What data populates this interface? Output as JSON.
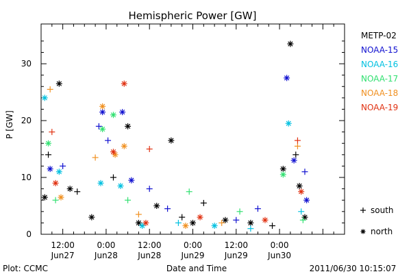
{
  "chart_data": {
    "type": "scatter",
    "title": "Hemispheric Power [GW]",
    "ylabel": "P [GW]",
    "xlabel": "Date and Time",
    "ylim": [
      0,
      37
    ],
    "xlim": [
      "2011-06-27T06:00",
      "2011-06-30T18:00"
    ],
    "yticks": [
      0,
      10,
      20,
      30
    ],
    "xticks": [
      {
        "time": "2011-06-27T12:00",
        "label1": "12:00",
        "label2": "Jun27"
      },
      {
        "time": "2011-06-28T00:00",
        "label1": "0:00",
        "label2": "Jun28"
      },
      {
        "time": "2011-06-28T12:00",
        "label1": "12:00",
        "label2": "Jun28"
      },
      {
        "time": "2011-06-29T00:00",
        "label1": "0:00",
        "label2": "Jun29"
      },
      {
        "time": "2011-06-29T12:00",
        "label1": "12:00",
        "label2": "Jun29"
      },
      {
        "time": "2011-06-30T00:00",
        "label1": "0:00",
        "label2": "Jun30"
      }
    ],
    "marker_legend": [
      {
        "symbol": "+",
        "label": "south"
      },
      {
        "symbol": "*",
        "label": "north"
      }
    ],
    "series": [
      {
        "name": "METP-02",
        "color": "#000000",
        "points": [
          {
            "x": "2011-06-27T07:00",
            "y": 6.5,
            "m": "n"
          },
          {
            "x": "2011-06-27T08:00",
            "y": 14,
            "m": "s"
          },
          {
            "x": "2011-06-27T11:00",
            "y": 26.5,
            "m": "n"
          },
          {
            "x": "2011-06-27T14:00",
            "y": 8,
            "m": "n"
          },
          {
            "x": "2011-06-27T16:00",
            "y": 7.5,
            "m": "s"
          },
          {
            "x": "2011-06-27T20:00",
            "y": 3,
            "m": "n"
          },
          {
            "x": "2011-06-28T02:00",
            "y": 10,
            "m": "s"
          },
          {
            "x": "2011-06-28T06:00",
            "y": 19,
            "m": "n"
          },
          {
            "x": "2011-06-28T09:00",
            "y": 2,
            "m": "n"
          },
          {
            "x": "2011-06-28T14:00",
            "y": 5,
            "m": "n"
          },
          {
            "x": "2011-06-28T18:00",
            "y": 16.5,
            "m": "n"
          },
          {
            "x": "2011-06-28T21:00",
            "y": 3,
            "m": "s"
          },
          {
            "x": "2011-06-29T00:00",
            "y": 2,
            "m": "n"
          },
          {
            "x": "2011-06-29T03:00",
            "y": 5.5,
            "m": "s"
          },
          {
            "x": "2011-06-29T09:00",
            "y": 2.5,
            "m": "n"
          },
          {
            "x": "2011-06-29T16:00",
            "y": 2,
            "m": "n"
          },
          {
            "x": "2011-06-29T22:00",
            "y": 1.5,
            "m": "s"
          },
          {
            "x": "2011-06-30T01:00",
            "y": 11.5,
            "m": "n"
          },
          {
            "x": "2011-06-30T03:00",
            "y": 33.5,
            "m": "n"
          },
          {
            "x": "2011-06-30T04:30",
            "y": 14,
            "m": "s"
          },
          {
            "x": "2011-06-30T05:30",
            "y": 8.5,
            "m": "n"
          },
          {
            "x": "2011-06-30T07:00",
            "y": 3,
            "m": "n"
          }
        ]
      },
      {
        "name": "NOAA-15",
        "color": "#1010d0",
        "points": [
          {
            "x": "2011-06-27T08:30",
            "y": 11.5,
            "m": "n"
          },
          {
            "x": "2011-06-27T12:00",
            "y": 12,
            "m": "s"
          },
          {
            "x": "2011-06-27T22:00",
            "y": 19,
            "m": "s"
          },
          {
            "x": "2011-06-27T23:00",
            "y": 21.5,
            "m": "n"
          },
          {
            "x": "2011-06-28T00:30",
            "y": 16.5,
            "m": "s"
          },
          {
            "x": "2011-06-28T04:30",
            "y": 21.5,
            "m": "n"
          },
          {
            "x": "2011-06-28T07:00",
            "y": 9.5,
            "m": "n"
          },
          {
            "x": "2011-06-28T12:00",
            "y": 8,
            "m": "s"
          },
          {
            "x": "2011-06-28T17:00",
            "y": 4.5,
            "m": "s"
          },
          {
            "x": "2011-06-29T12:00",
            "y": 2.5,
            "m": "s"
          },
          {
            "x": "2011-06-29T18:00",
            "y": 4.5,
            "m": "s"
          },
          {
            "x": "2011-06-30T02:00",
            "y": 27.5,
            "m": "n"
          },
          {
            "x": "2011-06-30T04:00",
            "y": 13,
            "m": "n"
          },
          {
            "x": "2011-06-30T07:00",
            "y": 11,
            "m": "s"
          },
          {
            "x": "2011-06-30T07:30",
            "y": 6,
            "m": "n"
          }
        ]
      },
      {
        "name": "NOAA-16",
        "color": "#00c0e0",
        "points": [
          {
            "x": "2011-06-27T07:00",
            "y": 24,
            "m": "n"
          },
          {
            "x": "2011-06-27T11:00",
            "y": 11,
            "m": "n"
          },
          {
            "x": "2011-06-27T22:30",
            "y": 9,
            "m": "n"
          },
          {
            "x": "2011-06-28T04:00",
            "y": 8.5,
            "m": "n"
          },
          {
            "x": "2011-06-28T10:00",
            "y": 1.5,
            "m": "n"
          },
          {
            "x": "2011-06-28T20:00",
            "y": 2,
            "m": "s"
          },
          {
            "x": "2011-06-29T06:00",
            "y": 1.5,
            "m": "n"
          },
          {
            "x": "2011-06-29T16:00",
            "y": 1,
            "m": "s"
          },
          {
            "x": "2011-06-30T02:30",
            "y": 19.5,
            "m": "n"
          },
          {
            "x": "2011-06-30T06:00",
            "y": 4,
            "m": "s"
          }
        ]
      },
      {
        "name": "NOAA-17",
        "color": "#30e070",
        "points": [
          {
            "x": "2011-06-27T08:00",
            "y": 16,
            "m": "n"
          },
          {
            "x": "2011-06-27T10:00",
            "y": 6,
            "m": "s"
          },
          {
            "x": "2011-06-27T23:00",
            "y": 18.5,
            "m": "n"
          },
          {
            "x": "2011-06-28T02:00",
            "y": 21,
            "m": "n"
          },
          {
            "x": "2011-06-28T06:00",
            "y": 6,
            "m": "s"
          },
          {
            "x": "2011-06-28T23:00",
            "y": 7.5,
            "m": "s"
          },
          {
            "x": "2011-06-29T13:00",
            "y": 4,
            "m": "s"
          },
          {
            "x": "2011-06-30T01:00",
            "y": 10.5,
            "m": "n"
          },
          {
            "x": "2011-06-30T06:30",
            "y": 2.5,
            "m": "s"
          }
        ]
      },
      {
        "name": "NOAA-18",
        "color": "#f09020",
        "points": [
          {
            "x": "2011-06-27T08:30",
            "y": 25.5,
            "m": "s"
          },
          {
            "x": "2011-06-27T11:30",
            "y": 6.5,
            "m": "n"
          },
          {
            "x": "2011-06-27T21:00",
            "y": 13.5,
            "m": "s"
          },
          {
            "x": "2011-06-27T23:00",
            "y": 22.5,
            "m": "n"
          },
          {
            "x": "2011-06-28T02:30",
            "y": 14,
            "m": "n"
          },
          {
            "x": "2011-06-28T05:00",
            "y": 15.5,
            "m": "n"
          },
          {
            "x": "2011-06-28T09:00",
            "y": 3.5,
            "m": "s"
          },
          {
            "x": "2011-06-28T22:00",
            "y": 1.5,
            "m": "n"
          },
          {
            "x": "2011-06-29T08:00",
            "y": 2,
            "m": "s"
          },
          {
            "x": "2011-06-30T05:00",
            "y": 15.5,
            "m": "s"
          }
        ]
      },
      {
        "name": "NOAA-19",
        "color": "#e03010",
        "points": [
          {
            "x": "2011-06-27T09:00",
            "y": 18,
            "m": "s"
          },
          {
            "x": "2011-06-27T10:00",
            "y": 9,
            "m": "n"
          },
          {
            "x": "2011-06-28T02:00",
            "y": 14.5,
            "m": "n"
          },
          {
            "x": "2011-06-28T05:00",
            "y": 26.5,
            "m": "n"
          },
          {
            "x": "2011-06-28T11:00",
            "y": 2,
            "m": "n"
          },
          {
            "x": "2011-06-28T12:00",
            "y": 15,
            "m": "s"
          },
          {
            "x": "2011-06-29T02:00",
            "y": 3,
            "m": "n"
          },
          {
            "x": "2011-06-29T20:00",
            "y": 2.5,
            "m": "n"
          },
          {
            "x": "2011-06-30T05:00",
            "y": 16.5,
            "m": "s"
          },
          {
            "x": "2011-06-30T06:00",
            "y": 7.5,
            "m": "n"
          }
        ]
      }
    ]
  },
  "footer": {
    "left": "Plot: CCMC",
    "right": "2011/06/30 10:15:07"
  }
}
